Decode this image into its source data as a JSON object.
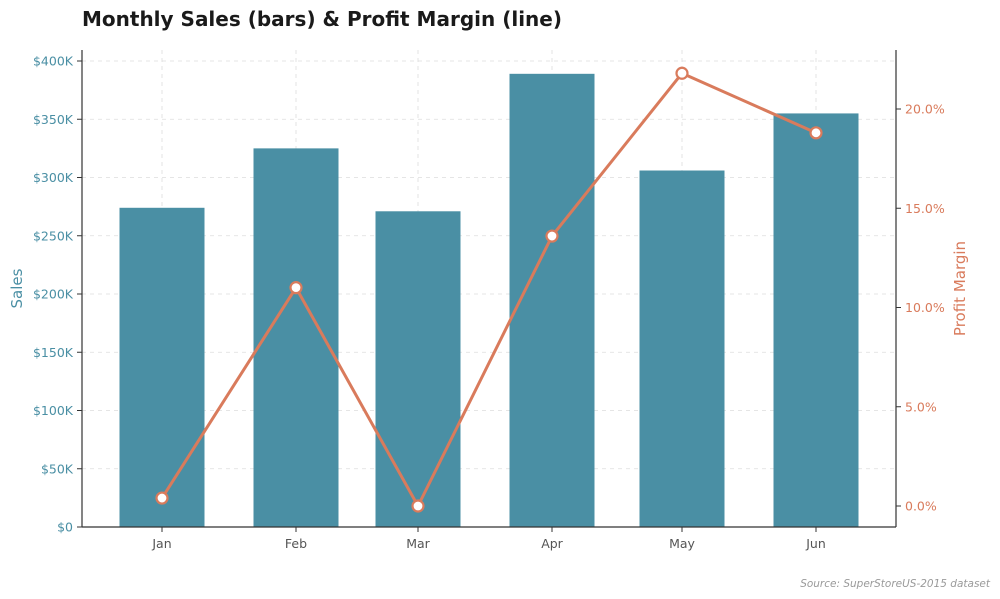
{
  "chart_data": {
    "type": "bar+line",
    "title": "Monthly Sales (bars) & Profit Margin (line)",
    "categories": [
      "Jan",
      "Feb",
      "Mar",
      "Apr",
      "May",
      "Jun"
    ],
    "series": [
      {
        "type": "bar",
        "axis": "left",
        "values": [
          274000,
          325000,
          271000,
          389000,
          306000,
          355000
        ],
        "color": "#4a8fa4"
      },
      {
        "type": "line",
        "axis": "right",
        "values": [
          0.4,
          11.0,
          0.0,
          13.6,
          21.8,
          18.8
        ],
        "color": "#d97b5c"
      }
    ],
    "y_left": {
      "label": "Sales",
      "range": [
        0,
        400000
      ],
      "ticks": [
        0,
        50000,
        100000,
        150000,
        200000,
        250000,
        300000,
        350000,
        400000
      ],
      "tick_labels": [
        "$0",
        "$50K",
        "$100K",
        "$150K",
        "$200K",
        "$250K",
        "$300K",
        "$350K",
        "$400K"
      ],
      "color": "#4a8fa4"
    },
    "y_right": {
      "label": "Profit Margin",
      "range": [
        -1.1,
        23.0
      ],
      "ticks": [
        0,
        5,
        10,
        15,
        20
      ],
      "tick_labels": [
        "0.0%",
        "5.0%",
        "10.0%",
        "15.0%",
        "20.0%"
      ],
      "color": "#d97b5c"
    },
    "grid": true,
    "source": "Source: SuperStoreUS-2015 dataset"
  }
}
